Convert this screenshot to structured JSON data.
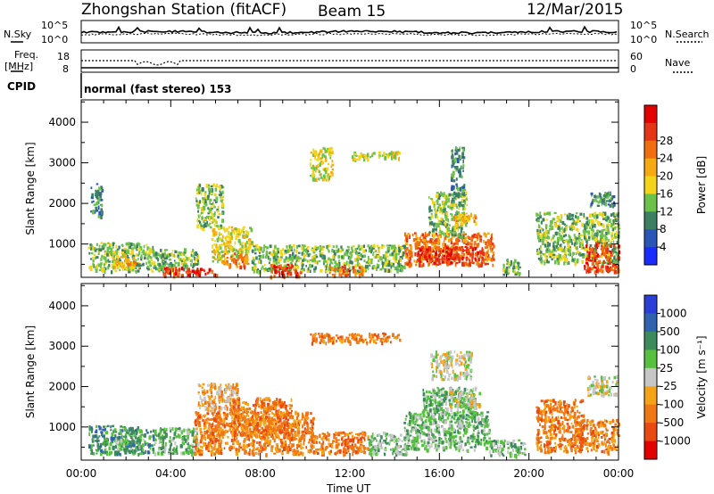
{
  "header": {
    "station": "Zhongshan Station (fitACF)",
    "beam": "Beam 15",
    "date": "12/Mar/2015"
  },
  "top_panels": {
    "noise_label": "N.Sky",
    "noise_right_label": "N.Search",
    "noise_ticks": [
      "10^5",
      "10^0"
    ],
    "freq_label_1": "Freq.",
    "freq_label_2": "[MHz]",
    "freq_ticks": [
      "18",
      "8"
    ],
    "nave_label": "Nave",
    "nave_ticks": [
      "60",
      "0"
    ],
    "cpid_label": "CPID",
    "cpid_text": "normal (fast stereo) 153"
  },
  "chart_data": [
    {
      "type": "heatmap",
      "name": "power",
      "xlabel": "Time UT",
      "ylabel": "Slant Range [km]",
      "x_tick_labels": [
        "00:00",
        "04:00",
        "08:00",
        "12:00",
        "16:00",
        "20:00",
        "00:00"
      ],
      "x_ticks_hours": [
        0,
        4,
        8,
        12,
        16,
        20,
        24
      ],
      "xlim_hours": [
        0,
        24
      ],
      "y_tick_labels": [
        "1000",
        "2000",
        "3000",
        "4000"
      ],
      "y_ticks": [
        1000,
        2000,
        3000,
        4000
      ],
      "ylim": [
        180,
        4550
      ],
      "colorbar_label": "Power [dB]",
      "colorbar_tick_labels": [
        "4",
        "8",
        "12",
        "16",
        "20",
        "24",
        "28"
      ],
      "colorbar_range": [
        0,
        30
      ],
      "colors": [
        "#1a2bff",
        "#2a56b8",
        "#3d7f62",
        "#6cc14a",
        "#f3d418",
        "#f5aa12",
        "#ef6f10",
        "#e43516",
        "#e50000"
      ],
      "regions": [
        {
          "x0": 0.3,
          "x1": 3.2,
          "y0": 350,
          "y1": 1050,
          "v": 10
        },
        {
          "x0": 1.4,
          "x1": 2.4,
          "y0": 450,
          "y1": 750,
          "v": 18
        },
        {
          "x0": 0.4,
          "x1": 0.9,
          "y0": 1700,
          "y1": 2500,
          "v": 8
        },
        {
          "x0": 3.2,
          "x1": 5.2,
          "y0": 350,
          "y1": 900,
          "v": 12
        },
        {
          "x0": 3.6,
          "x1": 4.6,
          "y0": 230,
          "y1": 450,
          "v": 25
        },
        {
          "x0": 4.6,
          "x1": 6.0,
          "y0": 230,
          "y1": 420,
          "v": 28
        },
        {
          "x0": 5.1,
          "x1": 6.3,
          "y0": 1400,
          "y1": 2500,
          "v": 10
        },
        {
          "x0": 5.8,
          "x1": 7.6,
          "y0": 600,
          "y1": 1450,
          "v": 14
        },
        {
          "x0": 6.3,
          "x1": 7.4,
          "y0": 450,
          "y1": 800,
          "v": 22
        },
        {
          "x0": 7.6,
          "x1": 10.0,
          "y0": 350,
          "y1": 1000,
          "v": 13
        },
        {
          "x0": 8.4,
          "x1": 9.8,
          "y0": 230,
          "y1": 520,
          "v": 27
        },
        {
          "x0": 10.0,
          "x1": 14.4,
          "y0": 350,
          "y1": 1000,
          "v": 12
        },
        {
          "x0": 11.0,
          "x1": 12.6,
          "y0": 250,
          "y1": 500,
          "v": 24
        },
        {
          "x0": 10.2,
          "x1": 11.2,
          "y0": 2600,
          "y1": 3400,
          "v": 14
        },
        {
          "x0": 12.0,
          "x1": 14.2,
          "y0": 3100,
          "y1": 3300,
          "v": 16
        },
        {
          "x0": 14.4,
          "x1": 18.4,
          "y0": 500,
          "y1": 1300,
          "v": 22
        },
        {
          "x0": 15.0,
          "x1": 17.9,
          "y0": 550,
          "y1": 950,
          "v": 28
        },
        {
          "x0": 15.5,
          "x1": 17.2,
          "y0": 1200,
          "y1": 2300,
          "v": 13
        },
        {
          "x0": 16.6,
          "x1": 17.6,
          "y0": 1500,
          "y1": 1800,
          "v": 18
        },
        {
          "x0": 16.5,
          "x1": 17.1,
          "y0": 2200,
          "y1": 3400,
          "v": 7
        },
        {
          "x0": 18.8,
          "x1": 19.6,
          "y0": 250,
          "y1": 650,
          "v": 11
        },
        {
          "x0": 20.3,
          "x1": 24.0,
          "y0": 550,
          "y1": 1800,
          "v": 13
        },
        {
          "x0": 22.4,
          "x1": 24.0,
          "y0": 350,
          "y1": 1050,
          "v": 26
        },
        {
          "x0": 22.6,
          "x1": 23.8,
          "y0": 1950,
          "y1": 2300,
          "v": 8
        }
      ]
    },
    {
      "type": "heatmap",
      "name": "velocity",
      "xlabel": "Time UT",
      "ylabel": "Slant Range [km]",
      "x_tick_labels": [
        "00:00",
        "04:00",
        "08:00",
        "12:00",
        "16:00",
        "20:00",
        "00:00"
      ],
      "x_ticks_hours": [
        0,
        4,
        8,
        12,
        16,
        20,
        24
      ],
      "xlim_hours": [
        0,
        24
      ],
      "y_tick_labels": [
        "1000",
        "2000",
        "3000",
        "4000"
      ],
      "y_ticks": [
        1000,
        2000,
        3000,
        4000
      ],
      "ylim": [
        180,
        4550
      ],
      "colorbar_label": "Velocity [m s⁻¹]",
      "colorbar_tick_labels": [
        "1000",
        "500",
        "100",
        "25",
        "-25",
        "-100",
        "-500",
        "-1000"
      ],
      "colors": [
        "#2a3fd6",
        "#2f63b0",
        "#3d8a5c",
        "#56c03f",
        "#c6c6c6",
        "#f5a316",
        "#f07814",
        "#e84a12",
        "#e50000"
      ],
      "regions": [
        {
          "x0": 0.3,
          "x1": 3.2,
          "y0": 350,
          "y1": 1050,
          "v": 2
        },
        {
          "x0": 1.5,
          "x1": 2.8,
          "y0": 400,
          "y1": 750,
          "v": 3
        },
        {
          "x0": 3.2,
          "x1": 5.2,
          "y0": 350,
          "y1": 1000,
          "v": 3
        },
        {
          "x0": 5.0,
          "x1": 10.4,
          "y0": 350,
          "y1": 1400,
          "v": 6
        },
        {
          "x0": 5.2,
          "x1": 7.0,
          "y0": 1400,
          "y1": 2100,
          "v": 5
        },
        {
          "x0": 6.6,
          "x1": 9.4,
          "y0": 800,
          "y1": 1750,
          "v": 6
        },
        {
          "x0": 10.2,
          "x1": 12.8,
          "y0": 350,
          "y1": 900,
          "v": 6
        },
        {
          "x0": 12.8,
          "x1": 14.5,
          "y0": 350,
          "y1": 900,
          "v": 3
        },
        {
          "x0": 10.2,
          "x1": 14.2,
          "y0": 3100,
          "y1": 3350,
          "v": 6
        },
        {
          "x0": 14.4,
          "x1": 18.2,
          "y0": 450,
          "y1": 1400,
          "v": 3
        },
        {
          "x0": 15.2,
          "x1": 17.6,
          "y0": 1300,
          "y1": 2000,
          "v": 3
        },
        {
          "x0": 16.4,
          "x1": 17.8,
          "y0": 1500,
          "y1": 1900,
          "v": 4
        },
        {
          "x0": 15.6,
          "x1": 17.4,
          "y0": 2200,
          "y1": 2900,
          "v": 4
        },
        {
          "x0": 18.2,
          "x1": 19.8,
          "y0": 300,
          "y1": 700,
          "v": 3
        },
        {
          "x0": 20.3,
          "x1": 22.4,
          "y0": 400,
          "y1": 1700,
          "v": 6
        },
        {
          "x0": 22.2,
          "x1": 24.0,
          "y0": 400,
          "y1": 1200,
          "v": 6
        },
        {
          "x0": 22.6,
          "x1": 23.9,
          "y0": 1800,
          "y1": 2300,
          "v": 4
        }
      ]
    }
  ]
}
